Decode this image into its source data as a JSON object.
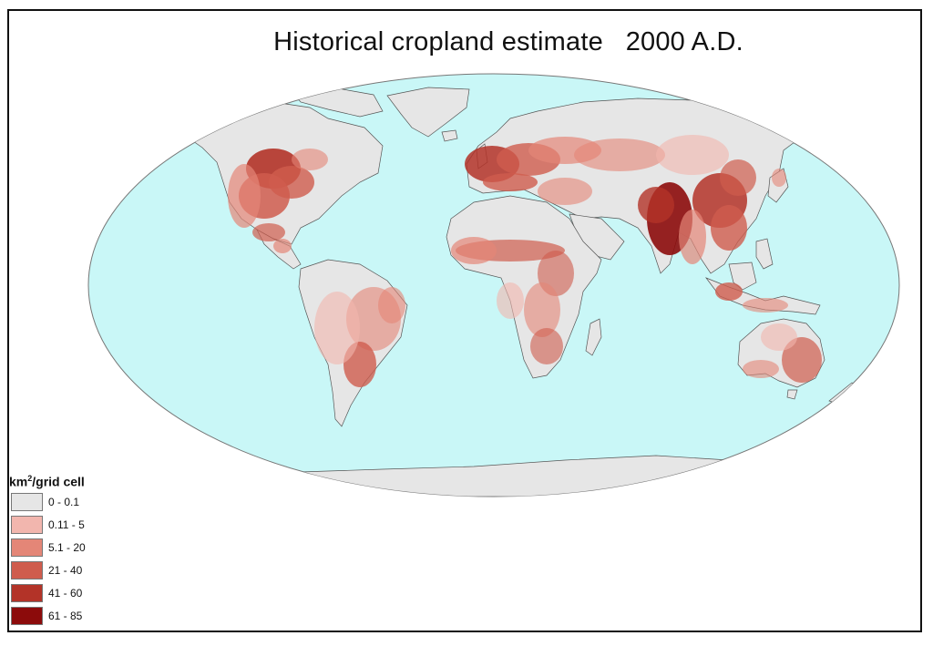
{
  "title": "Historical cropland estimate   2000 A.D.",
  "legend": {
    "title_main": "km",
    "title_sup": "2",
    "title_rest": "/grid cell",
    "items": [
      {
        "label": "0 - 0.1",
        "color": "#e6e6e6"
      },
      {
        "label": "0.11 - 5",
        "color": "#f2b6ae"
      },
      {
        "label": "5.1 - 20",
        "color": "#e48677"
      },
      {
        "label": "21 - 40",
        "color": "#cf5c4d"
      },
      {
        "label": "41 - 60",
        "color": "#b33328"
      },
      {
        "label": "61 - 85",
        "color": "#8c0b0b"
      }
    ]
  },
  "colors": {
    "ocean": "#c9f7f7",
    "land": "#e6e6e6",
    "coast": "#555555"
  }
}
